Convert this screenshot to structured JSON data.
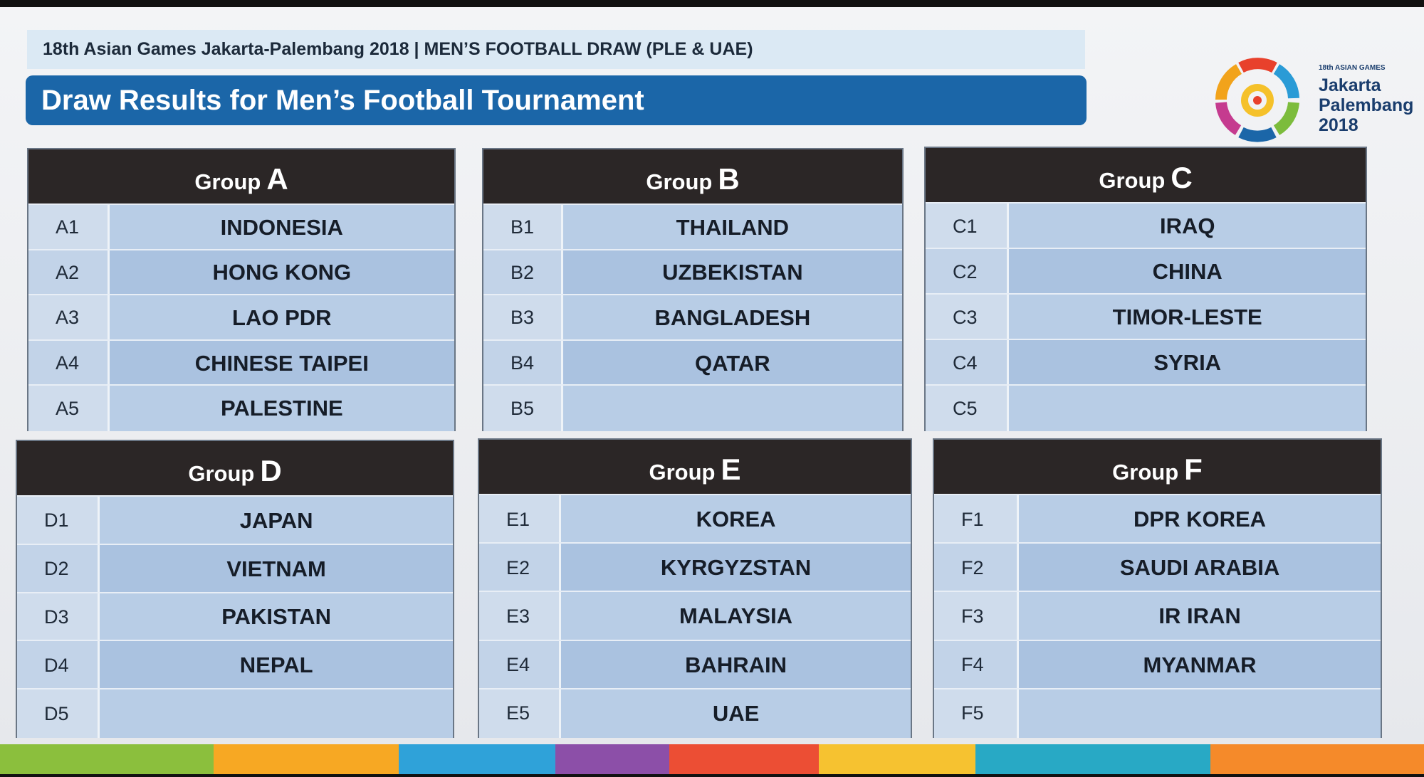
{
  "header": {
    "subtitle": "18th Asian Games Jakarta-Palembang 2018 | MEN’S FOOTBALL DRAW (PLE & UAE)",
    "title": "Draw Results for Men’s Football Tournament"
  },
  "logo": {
    "edition": "18th ASIAN GAMES",
    "line1": "Jakarta",
    "line2": "Palembang",
    "line3": "2018"
  },
  "groups": [
    {
      "label": "Group",
      "letter": "A",
      "rows": [
        {
          "code": "A1",
          "team": "INDONESIA"
        },
        {
          "code": "A2",
          "team": "HONG KONG"
        },
        {
          "code": "A3",
          "team": "LAO PDR"
        },
        {
          "code": "A4",
          "team": "CHINESE TAIPEI"
        },
        {
          "code": "A5",
          "team": "PALESTINE"
        }
      ]
    },
    {
      "label": "Group",
      "letter": "B",
      "rows": [
        {
          "code": "B1",
          "team": "THAILAND"
        },
        {
          "code": "B2",
          "team": "UZBEKISTAN"
        },
        {
          "code": "B3",
          "team": "BANGLADESH"
        },
        {
          "code": "B4",
          "team": "QATAR"
        },
        {
          "code": "B5"
        }
      ]
    },
    {
      "label": "Group",
      "letter": "C",
      "rows": [
        {
          "code": "C1",
          "team": "IRAQ"
        },
        {
          "code": "C2",
          "team": "CHINA"
        },
        {
          "code": "C3",
          "team": "TIMOR-LESTE"
        },
        {
          "code": "C4",
          "team": "SYRIA"
        },
        {
          "code": "C5"
        }
      ]
    },
    {
      "label": "Group",
      "letter": "D",
      "rows": [
        {
          "code": "D1",
          "team": "JAPAN"
        },
        {
          "code": "D2",
          "team": "VIETNAM"
        },
        {
          "code": "D3",
          "team": "PAKISTAN"
        },
        {
          "code": "D4",
          "team": "NEPAL"
        },
        {
          "code": "D5"
        }
      ]
    },
    {
      "label": "Group",
      "letter": "E",
      "rows": [
        {
          "code": "E1",
          "team": "KOREA"
        },
        {
          "code": "E2",
          "team": "KYRGYZSTAN"
        },
        {
          "code": "E3",
          "team": "MALAYSIA"
        },
        {
          "code": "E4",
          "team": "BAHRAIN"
        },
        {
          "code": "E5",
          "team": "UAE"
        }
      ]
    },
    {
      "label": "Group",
      "letter": "F",
      "rows": [
        {
          "code": "F1",
          "team": "DPR KOREA"
        },
        {
          "code": "F2",
          "team": "SAUDI ARABIA"
        },
        {
          "code": "F3",
          "team": "IR IRAN"
        },
        {
          "code": "F4",
          "team": "MYANMAR"
        },
        {
          "code": "F5"
        }
      ]
    }
  ]
}
